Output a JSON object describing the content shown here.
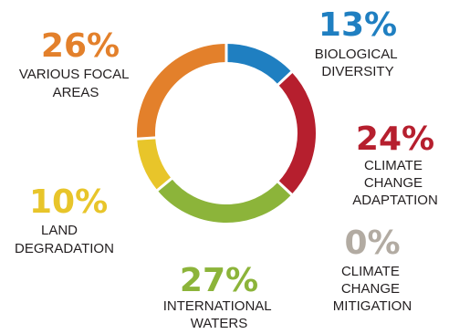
{
  "chart_data": {
    "type": "pie",
    "variant": "donut",
    "legend": "none",
    "slices": [
      {
        "label_lines": [
          "BIOLOGICAL",
          "DIVERSITY"
        ],
        "value": 13,
        "value_text": "13%",
        "color": "#1f7fc1"
      },
      {
        "label_lines": [
          "CLIMATE",
          "CHANGE",
          "ADAPTATION"
        ],
        "value": 24,
        "value_text": "24%",
        "color": "#b61f2e"
      },
      {
        "label_lines": [
          "CLIMATE",
          "CHANGE",
          "MITIGATION"
        ],
        "value": 0,
        "value_text": "0%",
        "color": "#b2aba2"
      },
      {
        "label_lines": [
          "INTERNATIONAL",
          "WATERS"
        ],
        "value": 27,
        "value_text": "27%",
        "color": "#8cb43a"
      },
      {
        "label_lines": [
          "LAND",
          "DEGRADATION"
        ],
        "value": 10,
        "value_text": "10%",
        "color": "#e8c52a"
      },
      {
        "label_lines": [
          "VARIOUS FOCAL",
          "AREAS"
        ],
        "value": 26,
        "value_text": "26%",
        "color": "#e3802b"
      }
    ]
  }
}
